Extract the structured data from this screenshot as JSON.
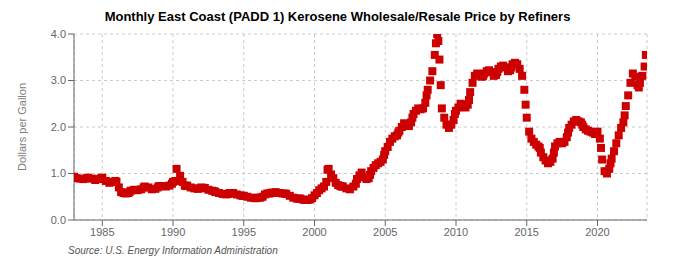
{
  "chart_data": {
    "type": "scatter",
    "title": "Monthly East Coast (PADD 1) Kerosene Wholesale/Resale Price by Refiners",
    "y_label": "Dollars per Gallon",
    "annotations": [
      "Source: U.S. Energy Information Administration"
    ],
    "color": "#cc0000",
    "marker": "square",
    "grid": true,
    "xlim": [
      1983.0,
      2023.5
    ],
    "xticks": [
      1985,
      1990,
      1995,
      2000,
      2005,
      2010,
      2015,
      2020
    ],
    "ylim": [
      0.0,
      4.0
    ],
    "yticks": [
      {
        "value": 0.0,
        "label": "0.0"
      },
      {
        "value": 1.0,
        "label": "1.0"
      },
      {
        "value": 2.0,
        "label": "2.0"
      },
      {
        "value": 3.0,
        "label": "3.0"
      },
      {
        "value": 4.0,
        "label": "4.0"
      }
    ],
    "x": [
      1983.0,
      1983.17,
      1983.42,
      1983.67,
      1983.92,
      1984.0,
      1984.25,
      1984.5,
      1984.75,
      1984.92,
      1985.0,
      1985.25,
      1985.5,
      1985.75,
      1985.92,
      1986.0,
      1986.17,
      1986.33,
      1986.5,
      1986.67,
      1986.83,
      1986.92,
      1987.0,
      1987.25,
      1987.5,
      1987.75,
      1987.92,
      1988.0,
      1988.25,
      1988.5,
      1988.75,
      1988.92,
      1989.0,
      1989.25,
      1989.5,
      1989.75,
      1989.92,
      1990.0,
      1990.17,
      1990.25,
      1990.5,
      1990.67,
      1990.83,
      1990.92,
      1991.0,
      1991.25,
      1991.5,
      1991.75,
      1991.92,
      1992.0,
      1992.25,
      1992.5,
      1992.75,
      1992.92,
      1993.0,
      1993.25,
      1993.5,
      1993.75,
      1993.92,
      1994.0,
      1994.25,
      1994.5,
      1994.75,
      1994.92,
      1995.0,
      1995.25,
      1995.5,
      1995.75,
      1995.92,
      1996.0,
      1996.17,
      1996.33,
      1996.5,
      1996.67,
      1996.83,
      1996.92,
      1997.0,
      1997.25,
      1997.5,
      1997.75,
      1997.92,
      1998.0,
      1998.25,
      1998.5,
      1998.75,
      1998.92,
      1999.0,
      1999.17,
      1999.33,
      1999.5,
      1999.67,
      1999.83,
      2000.0,
      2000.17,
      2000.33,
      2000.5,
      2000.67,
      2000.83,
      2000.92,
      2001.0,
      2001.17,
      2001.33,
      2001.5,
      2001.67,
      2001.83,
      2001.92,
      2002.0,
      2002.25,
      2002.5,
      2002.75,
      2002.92,
      2003.0,
      2003.17,
      2003.33,
      2003.5,
      2003.67,
      2003.83,
      2003.92,
      2004.0,
      2004.17,
      2004.33,
      2004.5,
      2004.67,
      2004.83,
      2004.92,
      2005.0,
      2005.17,
      2005.33,
      2005.5,
      2005.67,
      2005.83,
      2005.92,
      2006.0,
      2006.17,
      2006.33,
      2006.5,
      2006.67,
      2006.83,
      2006.92,
      2007.0,
      2007.17,
      2007.33,
      2007.5,
      2007.67,
      2007.83,
      2007.92,
      2008.0,
      2008.17,
      2008.33,
      2008.5,
      2008.58,
      2008.67,
      2008.75,
      2008.83,
      2008.92,
      2009.0,
      2009.17,
      2009.33,
      2009.5,
      2009.67,
      2009.83,
      2009.92,
      2010.0,
      2010.17,
      2010.33,
      2010.5,
      2010.67,
      2010.83,
      2010.92,
      2011.0,
      2011.17,
      2011.33,
      2011.5,
      2011.67,
      2011.83,
      2011.92,
      2012.0,
      2012.17,
      2012.33,
      2012.5,
      2012.67,
      2012.83,
      2012.92,
      2013.0,
      2013.17,
      2013.33,
      2013.5,
      2013.67,
      2013.83,
      2013.92,
      2014.0,
      2014.17,
      2014.33,
      2014.5,
      2014.67,
      2014.83,
      2014.92,
      2015.0,
      2015.17,
      2015.33,
      2015.5,
      2015.67,
      2015.83,
      2015.92,
      2016.0,
      2016.17,
      2016.33,
      2016.5,
      2016.67,
      2016.83,
      2016.92,
      2017.0,
      2017.17,
      2017.33,
      2017.5,
      2017.67,
      2017.83,
      2017.92,
      2018.0,
      2018.17,
      2018.33,
      2018.5,
      2018.67,
      2018.83,
      2018.92,
      2019.0,
      2019.17,
      2019.33,
      2019.5,
      2019.67,
      2019.83,
      2019.92,
      2020.0,
      2020.17,
      2020.25,
      2020.33,
      2020.5,
      2020.67,
      2020.83,
      2020.92,
      2021.0,
      2021.17,
      2021.33,
      2021.5,
      2021.67,
      2021.83,
      2021.92,
      2022.0,
      2022.17,
      2022.33,
      2022.5,
      2022.67,
      2022.83,
      2022.92,
      2023.0,
      2023.17,
      2023.33,
      2023.42
    ],
    "values": [
      0.93,
      0.9,
      0.89,
      0.88,
      0.9,
      0.91,
      0.89,
      0.86,
      0.88,
      0.9,
      0.91,
      0.84,
      0.8,
      0.82,
      0.84,
      0.82,
      0.7,
      0.6,
      0.58,
      0.57,
      0.58,
      0.6,
      0.63,
      0.65,
      0.64,
      0.66,
      0.7,
      0.72,
      0.7,
      0.66,
      0.67,
      0.7,
      0.73,
      0.73,
      0.72,
      0.74,
      0.78,
      0.82,
      0.84,
      1.1,
      0.95,
      0.82,
      0.74,
      0.73,
      0.74,
      0.7,
      0.68,
      0.67,
      0.68,
      0.7,
      0.69,
      0.65,
      0.63,
      0.62,
      0.6,
      0.58,
      0.56,
      0.55,
      0.56,
      0.58,
      0.58,
      0.55,
      0.53,
      0.52,
      0.52,
      0.5,
      0.48,
      0.47,
      0.47,
      0.48,
      0.48,
      0.5,
      0.55,
      0.57,
      0.57,
      0.58,
      0.59,
      0.6,
      0.58,
      0.57,
      0.57,
      0.56,
      0.52,
      0.48,
      0.46,
      0.46,
      0.46,
      0.44,
      0.43,
      0.43,
      0.44,
      0.47,
      0.53,
      0.58,
      0.64,
      0.68,
      0.72,
      0.82,
      1.08,
      1.1,
      0.98,
      0.9,
      0.8,
      0.75,
      0.73,
      0.72,
      0.72,
      0.68,
      0.66,
      0.72,
      0.78,
      0.88,
      0.96,
      1.02,
      0.92,
      0.88,
      0.9,
      0.97,
      1.05,
      1.12,
      1.18,
      1.22,
      1.25,
      1.3,
      1.4,
      1.48,
      1.57,
      1.68,
      1.75,
      1.8,
      1.82,
      1.88,
      1.92,
      2.0,
      2.08,
      2.05,
      2.02,
      2.1,
      2.2,
      2.28,
      2.35,
      2.4,
      2.38,
      2.4,
      2.52,
      2.68,
      2.8,
      3.0,
      3.2,
      3.55,
      3.8,
      4.0,
      3.85,
      3.45,
      2.9,
      2.4,
      2.2,
      2.05,
      1.98,
      2.05,
      2.15,
      2.28,
      2.35,
      2.42,
      2.5,
      2.45,
      2.42,
      2.48,
      2.58,
      2.75,
      2.95,
      3.1,
      3.15,
      3.12,
      3.08,
      3.1,
      3.15,
      3.2,
      3.22,
      3.18,
      3.1,
      3.12,
      3.18,
      3.25,
      3.3,
      3.32,
      3.28,
      3.2,
      3.22,
      3.28,
      3.35,
      3.38,
      3.35,
      3.25,
      3.1,
      2.8,
      2.48,
      2.2,
      1.9,
      1.75,
      1.68,
      1.62,
      1.58,
      1.55,
      1.45,
      1.35,
      1.28,
      1.22,
      1.25,
      1.32,
      1.45,
      1.58,
      1.65,
      1.68,
      1.65,
      1.68,
      1.78,
      1.88,
      1.98,
      2.05,
      2.12,
      2.15,
      2.12,
      2.1,
      2.05,
      2.0,
      1.95,
      1.92,
      1.9,
      1.88,
      1.85,
      1.88,
      1.9,
      1.75,
      1.55,
      1.3,
      1.05,
      1.0,
      1.1,
      1.22,
      1.32,
      1.48,
      1.65,
      1.82,
      1.98,
      2.1,
      2.25,
      2.45,
      2.68,
      2.95,
      3.15,
      3.08,
      2.9,
      2.85,
      2.95,
      3.1,
      3.3,
      3.55
    ]
  }
}
